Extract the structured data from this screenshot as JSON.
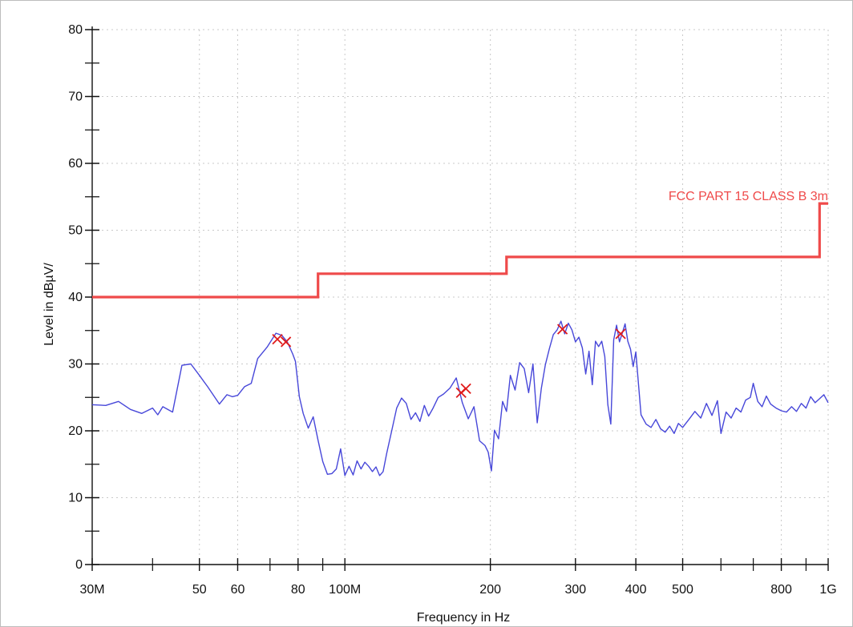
{
  "chart_data": {
    "type": "line",
    "xlabel": "Frequency in Hz",
    "ylabel": "Level in dBµV/",
    "x_scale": "log",
    "xlim": [
      30000000,
      1000000000
    ],
    "ylim": [
      0,
      80
    ],
    "grid": true,
    "x_ticks": [
      {
        "value": 30000000,
        "label": "30M"
      },
      {
        "value": 50000000,
        "label": "50"
      },
      {
        "value": 60000000,
        "label": "60"
      },
      {
        "value": 80000000,
        "label": "80"
      },
      {
        "value": 100000000,
        "label": "100M"
      },
      {
        "value": 200000000,
        "label": "200"
      },
      {
        "value": 300000000,
        "label": "300"
      },
      {
        "value": 400000000,
        "label": "400"
      },
      {
        "value": 500000000,
        "label": "500"
      },
      {
        "value": 800000000,
        "label": "800"
      },
      {
        "value": 1000000000,
        "label": "1G"
      }
    ],
    "x_minor_ticks": [
      40000000,
      70000000,
      90000000,
      600000000,
      700000000,
      900000000
    ],
    "y_ticks": [
      {
        "value": 0,
        "label": "0"
      },
      {
        "value": 10,
        "label": "10"
      },
      {
        "value": 20,
        "label": "20"
      },
      {
        "value": 30,
        "label": "30"
      },
      {
        "value": 40,
        "label": "40"
      },
      {
        "value": 50,
        "label": "50"
      },
      {
        "value": 60,
        "label": "60"
      },
      {
        "value": 70,
        "label": "70"
      },
      {
        "value": 80,
        "label": "80"
      }
    ],
    "y_minor_ticks": [
      5,
      15,
      25,
      35,
      45,
      55,
      65,
      75
    ],
    "limit_line": {
      "name": "FCC PART 15 CLASS B  3m",
      "color": "#ef4a4a",
      "x": [
        30000000,
        88000000,
        88000000,
        216000000,
        216000000,
        960000000,
        960000000,
        1000000000
      ],
      "y": [
        40,
        40,
        43.5,
        43.5,
        46,
        46,
        54,
        54
      ]
    },
    "measurement": {
      "color": "#4747d9",
      "x": [
        30000000,
        32000000,
        34000000,
        36000000,
        38000000,
        40000000,
        41000000,
        42000000,
        44000000,
        46000000,
        48000000,
        50000000,
        52000000,
        55000000,
        57000000,
        58500000,
        60000000,
        62000000,
        64000000,
        66000000,
        69000000,
        72000000,
        74000000,
        76000000,
        78000000,
        79000000,
        80500000,
        82000000,
        84000000,
        86000000,
        88000000,
        90000000,
        92000000,
        94000000,
        96000000,
        98000000,
        100000000,
        102000000,
        104000000,
        106000000,
        108000000,
        110000000,
        112000000,
        114000000,
        116000000,
        118000000,
        120000000,
        122000000,
        125000000,
        128000000,
        131000000,
        134000000,
        137000000,
        140000000,
        143000000,
        146000000,
        149000000,
        152000000,
        156000000,
        160000000,
        165000000,
        170000000,
        175000000,
        180000000,
        185000000,
        190000000,
        195000000,
        198000000,
        201000000,
        204000000,
        208000000,
        212000000,
        216000000,
        220000000,
        225000000,
        230000000,
        235000000,
        240000000,
        245000000,
        250000000,
        255000000,
        260000000,
        265000000,
        270000000,
        275000000,
        280000000,
        285000000,
        290000000,
        295000000,
        300000000,
        305000000,
        310000000,
        315000000,
        320000000,
        325000000,
        330000000,
        335000000,
        340000000,
        345000000,
        350000000,
        355000000,
        360000000,
        365000000,
        370000000,
        375000000,
        380000000,
        385000000,
        390000000,
        395000000,
        400000000,
        410000000,
        420000000,
        430000000,
        440000000,
        450000000,
        460000000,
        470000000,
        480000000,
        490000000,
        500000000,
        515000000,
        530000000,
        545000000,
        560000000,
        575000000,
        590000000,
        600000000,
        615000000,
        630000000,
        645000000,
        660000000,
        675000000,
        690000000,
        700000000,
        715000000,
        730000000,
        745000000,
        760000000,
        780000000,
        800000000,
        820000000,
        840000000,
        860000000,
        880000000,
        900000000,
        920000000,
        940000000,
        960000000,
        980000000,
        1000000000
      ],
      "y": [
        23.9,
        23.8,
        24.4,
        23.2,
        22.6,
        23.4,
        22.4,
        23.6,
        22.8,
        29.8,
        30.0,
        28.3,
        26.6,
        24.0,
        25.4,
        25.1,
        25.3,
        26.6,
        27.1,
        30.8,
        32.5,
        34.6,
        34.3,
        33.3,
        31.5,
        30.4,
        25.1,
        22.6,
        20.4,
        22.1,
        18.6,
        15.4,
        13.5,
        13.6,
        14.3,
        17.3,
        13.3,
        14.7,
        13.4,
        15.5,
        14.3,
        15.3,
        14.7,
        13.9,
        14.6,
        13.3,
        13.9,
        16.6,
        20.0,
        23.4,
        24.9,
        24.1,
        21.7,
        22.7,
        21.4,
        23.8,
        22.2,
        23.3,
        25.0,
        25.5,
        26.4,
        27.9,
        24.2,
        21.8,
        23.6,
        18.5,
        17.8,
        16.8,
        14.0,
        20.1,
        18.8,
        24.4,
        22.9,
        28.3,
        26.1,
        30.2,
        29.3,
        25.7,
        30.0,
        21.2,
        26.4,
        29.9,
        32.3,
        34.4,
        35.1,
        36.4,
        34.5,
        36.1,
        35.1,
        33.3,
        34.0,
        32.4,
        28.5,
        31.9,
        26.9,
        33.4,
        32.6,
        33.4,
        31.1,
        23.9,
        21.0,
        33.6,
        35.8,
        33.3,
        34.6,
        36.0,
        33.4,
        32.2,
        29.6,
        31.8,
        22.4,
        21.0,
        20.5,
        21.7,
        20.3,
        19.8,
        20.7,
        19.6,
        21.1,
        20.5,
        21.7,
        22.9,
        21.9,
        24.1,
        22.3,
        24.5,
        19.6,
        22.8,
        21.9,
        23.4,
        22.8,
        24.6,
        25.0,
        27.1,
        24.4,
        23.6,
        25.2,
        24.0,
        23.4,
        23.0,
        22.8,
        23.6,
        22.9,
        24.1,
        23.4,
        25.1,
        24.2,
        24.8,
        25.4,
        24.2
      ]
    },
    "markers": {
      "color": "#e01b1b",
      "x": [
        72500000,
        75500000,
        174000000,
        178000000,
        282000000,
        372000000
      ],
      "y": [
        33.7,
        33.3,
        25.7,
        26.3,
        35.2,
        34.5
      ]
    }
  }
}
